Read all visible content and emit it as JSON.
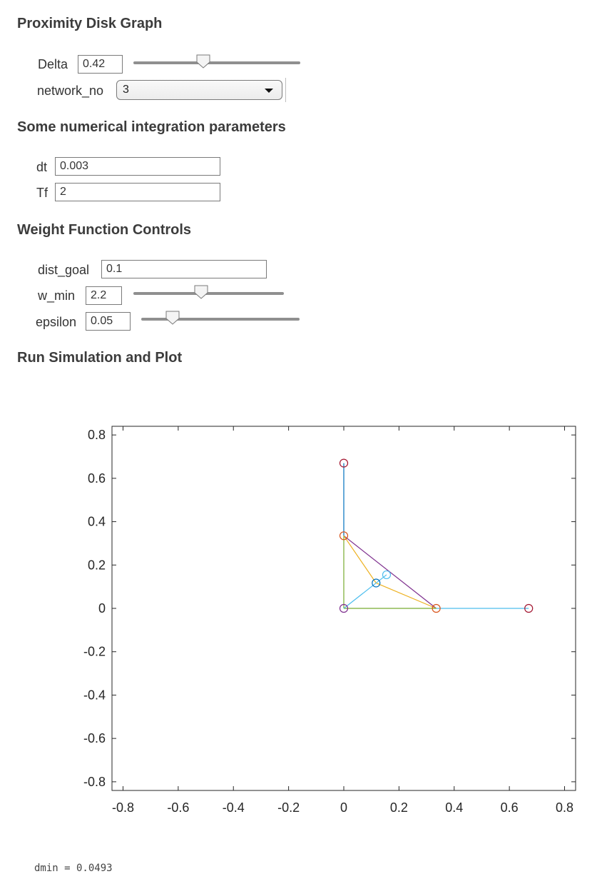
{
  "sections": {
    "proximity": "Proximity Disk Graph",
    "integration": "Some numerical integration parameters",
    "weight": "Weight Function Controls",
    "run": "Run Simulation and Plot"
  },
  "controls": {
    "delta": {
      "label": "Delta",
      "value": "0.42",
      "slider_fraction": 0.42
    },
    "network_no": {
      "label": "network_no",
      "selected": "3"
    },
    "dt": {
      "label": "dt",
      "value": "0.003"
    },
    "tf": {
      "label": "Tf",
      "value": "2"
    },
    "dist_goal": {
      "label": "dist_goal",
      "value": "0.1"
    },
    "w_min": {
      "label": "w_min",
      "value": "2.2",
      "slider_fraction": 0.45
    },
    "epsilon": {
      "label": "epsilon",
      "value": "0.05",
      "slider_fraction": 0.2
    }
  },
  "output": {
    "text": "dmin = 0.0493"
  },
  "chart_data": {
    "type": "line",
    "xlim": [
      -0.84,
      0.84
    ],
    "ylim": [
      -0.84,
      0.84
    ],
    "xticks": [
      -0.8,
      -0.6,
      -0.4,
      -0.2,
      0,
      0.2,
      0.4,
      0.6,
      0.8
    ],
    "yticks": [
      -0.8,
      -0.6,
      -0.4,
      -0.2,
      0,
      0.2,
      0.4,
      0.6,
      0.8
    ],
    "xtick_labels": [
      "-0.8",
      "-0.6",
      "-0.4",
      "-0.2",
      "0",
      "0.2",
      "0.4",
      "0.6",
      "0.8"
    ],
    "ytick_labels": [
      "-0.8",
      "-0.6",
      "-0.4",
      "-0.2",
      "0",
      "0.2",
      "0.4",
      "0.6",
      "0.8"
    ],
    "grid": false,
    "edges": [
      {
        "from": [
          0,
          0.67
        ],
        "to": [
          0,
          0.335
        ],
        "color": "#0072bd"
      },
      {
        "from": [
          0,
          0.335
        ],
        "to": [
          0,
          0
        ],
        "color": "#77ac30"
      },
      {
        "from": [
          0,
          0.335
        ],
        "to": [
          0.335,
          0
        ],
        "color": "#7e2f8e"
      },
      {
        "from": [
          0,
          0.335
        ],
        "to": [
          0.117,
          0.117
        ],
        "color": "#edb120"
      },
      {
        "from": [
          0.117,
          0.117
        ],
        "to": [
          0.335,
          0
        ],
        "color": "#edb120"
      },
      {
        "from": [
          0,
          0
        ],
        "to": [
          0.335,
          0
        ],
        "color": "#77ac30"
      },
      {
        "from": [
          0,
          0
        ],
        "to": [
          0.155,
          0.155
        ],
        "color": "#4dbeee"
      },
      {
        "from": [
          0.335,
          0
        ],
        "to": [
          0.67,
          0
        ],
        "color": "#4dbeee"
      }
    ],
    "nodes": [
      {
        "x": 0,
        "y": 0.67,
        "color": "#a2142f"
      },
      {
        "x": 0,
        "y": 0.335,
        "color": "#d95319"
      },
      {
        "x": 0,
        "y": 0,
        "color": "#7e2f8e"
      },
      {
        "x": 0.117,
        "y": 0.117,
        "color": "#0072bd"
      },
      {
        "x": 0.155,
        "y": 0.155,
        "color": "#4dbeee"
      },
      {
        "x": 0.335,
        "y": 0,
        "color": "#d95319"
      },
      {
        "x": 0.67,
        "y": 0,
        "color": "#a2142f"
      }
    ]
  }
}
